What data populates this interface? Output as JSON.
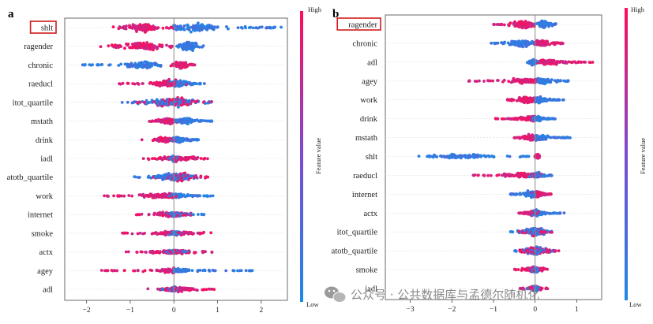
{
  "chart_data": [
    {
      "type": "scatter",
      "subtype": "shap-beeswarm",
      "panel_label": "a",
      "xlim": [
        -2.5,
        2.6
      ],
      "xticks": [
        -2,
        -1,
        0,
        1,
        2
      ],
      "highlighted_feature": "shlt",
      "colorbar": {
        "high_label": "High",
        "low_label": "Low",
        "title": "Feature value",
        "low_color": "#1e88e5",
        "high_color": "#ff0d57"
      },
      "features": [
        {
          "name": "shlt",
          "low_span": [
            0.0,
            2.5
          ],
          "high_span": [
            -1.4,
            0.0
          ],
          "low_peak": 0.45,
          "high_peak": -0.75,
          "thickness": 8
        },
        {
          "name": "ragender",
          "low_span": [
            0.05,
            0.8
          ],
          "high_span": [
            -1.7,
            0.0
          ],
          "low_peak": 0.35,
          "high_peak": -0.7,
          "thickness": 8
        },
        {
          "name": "chronic",
          "low_span": [
            -2.2,
            -0.3
          ],
          "high_span": [
            -0.1,
            0.5
          ],
          "low_peak": -0.7,
          "high_peak": 0.15,
          "thickness": 7
        },
        {
          "name": "raeducl",
          "low_span": [
            -0.2,
            0.7
          ],
          "high_span": [
            -1.3,
            0.3
          ],
          "low_peak": 0.1,
          "high_peak": -0.1,
          "thickness": 7
        },
        {
          "name": "itot_quartile",
          "low_span": [
            -1.2,
            0.9
          ],
          "high_span": [
            -1.0,
            0.9
          ],
          "low_peak": 0.0,
          "high_peak": 0.0,
          "thickness": 8
        },
        {
          "name": "mstath",
          "low_span": [
            0.0,
            0.9
          ],
          "high_span": [
            -0.6,
            0.1
          ],
          "low_peak": 0.25,
          "high_peak": -0.15,
          "thickness": 6
        },
        {
          "name": "drink",
          "low_span": [
            -0.1,
            0.6
          ],
          "high_span": [
            -0.8,
            0.05
          ],
          "low_peak": 0.1,
          "high_peak": -0.2,
          "thickness": 5
        },
        {
          "name": "iadl",
          "low_span": [
            -0.2,
            0.1
          ],
          "high_span": [
            -0.7,
            0.9
          ],
          "low_peak": 0.0,
          "high_peak": 0.1,
          "thickness": 5
        },
        {
          "name": "atotb_quartile",
          "low_span": [
            -1.0,
            0.6
          ],
          "high_span": [
            -0.5,
            0.8
          ],
          "low_peak": 0.0,
          "high_peak": 0.1,
          "thickness": 8
        },
        {
          "name": "work",
          "low_span": [
            -0.1,
            0.9
          ],
          "high_span": [
            -1.6,
            0.05
          ],
          "low_peak": 0.05,
          "high_peak": -0.3,
          "thickness": 5
        },
        {
          "name": "internet",
          "low_span": [
            -0.2,
            0.7
          ],
          "high_span": [
            -1.0,
            0.4
          ],
          "low_peak": 0.0,
          "high_peak": -0.05,
          "thickness": 5
        },
        {
          "name": "smoke",
          "low_span": [
            -0.3,
            0.2
          ],
          "high_span": [
            -1.3,
            0.9
          ],
          "low_peak": 0.0,
          "high_peak": 0.0,
          "thickness": 4
        },
        {
          "name": "actx",
          "low_span": [
            -0.2,
            0.4
          ],
          "high_span": [
            -1.1,
            0.9
          ],
          "low_peak": 0.0,
          "high_peak": 0.0,
          "thickness": 4
        },
        {
          "name": "agey",
          "low_span": [
            0.0,
            1.9
          ],
          "high_span": [
            -1.7,
            0.0
          ],
          "low_peak": 0.0,
          "high_peak": 0.0,
          "thickness": 4
        },
        {
          "name": "adl",
          "low_span": [
            -0.3,
            0.1
          ],
          "high_span": [
            -0.6,
            1.0
          ],
          "low_peak": 0.0,
          "high_peak": 0.05,
          "thickness": 4
        }
      ]
    },
    {
      "type": "scatter",
      "subtype": "shap-beeswarm",
      "panel_label": "b",
      "xlim": [
        -3.6,
        1.6
      ],
      "xticks": [
        -3,
        -2,
        -1,
        0,
        1
      ],
      "highlighted_feature": "ragender",
      "colorbar": {
        "high_label": "High",
        "low_label": "Low",
        "title": "Feature value",
        "low_color": "#1e88e5",
        "high_color": "#ff0d57"
      },
      "features": [
        {
          "name": "ragender",
          "low_span": [
            0.0,
            0.5
          ],
          "high_span": [
            -1.0,
            0.0
          ],
          "low_peak": 0.2,
          "high_peak": -0.3,
          "thickness": 8
        },
        {
          "name": "chronic",
          "low_span": [
            -1.1,
            0.0
          ],
          "high_span": [
            -0.1,
            0.7
          ],
          "low_peak": -0.3,
          "high_peak": 0.15,
          "thickness": 7
        },
        {
          "name": "adl",
          "low_span": [
            -0.2,
            0.1
          ],
          "high_span": [
            0.0,
            1.4
          ],
          "low_peak": -0.05,
          "high_peak": 0.3,
          "thickness": 5
        },
        {
          "name": "agey",
          "low_span": [
            0.0,
            0.8
          ],
          "high_span": [
            -1.6,
            0.0
          ],
          "low_peak": 0.2,
          "high_peak": -0.2,
          "thickness": 6
        },
        {
          "name": "work",
          "low_span": [
            0.0,
            0.7
          ],
          "high_span": [
            -0.7,
            0.1
          ],
          "low_peak": 0.1,
          "high_peak": -0.2,
          "thickness": 6
        },
        {
          "name": "drink",
          "low_span": [
            -0.1,
            0.5
          ],
          "high_span": [
            -1.0,
            0.0
          ],
          "low_peak": 0.05,
          "high_peak": -0.1,
          "thickness": 5
        },
        {
          "name": "mstath",
          "low_span": [
            0.0,
            0.9
          ],
          "high_span": [
            -0.5,
            0.1
          ],
          "low_peak": 0.1,
          "high_peak": -0.1,
          "thickness": 6
        },
        {
          "name": "shlt",
          "low_span": [
            -3.1,
            -0.1
          ],
          "high_span": [
            0.0,
            0.1
          ],
          "low_peak": -1.8,
          "high_peak": 0.05,
          "thickness": 4
        },
        {
          "name": "raeducl",
          "low_span": [
            -0.2,
            0.4
          ],
          "high_span": [
            -1.5,
            0.2
          ],
          "low_peak": 0.05,
          "high_peak": -0.2,
          "thickness": 5
        },
        {
          "name": "internet",
          "low_span": [
            -0.6,
            0.0
          ],
          "high_span": [
            -0.1,
            0.4
          ],
          "low_peak": -0.1,
          "high_peak": 0.05,
          "thickness": 6
        },
        {
          "name": "actx",
          "low_span": [
            -0.1,
            0.7
          ],
          "high_span": [
            -0.4,
            0.1
          ],
          "low_peak": 0.05,
          "high_peak": -0.05,
          "thickness": 5
        },
        {
          "name": "itot_quartile",
          "low_span": [
            -0.6,
            0.4
          ],
          "high_span": [
            -0.4,
            0.5
          ],
          "low_peak": 0.0,
          "high_peak": 0.0,
          "thickness": 8
        },
        {
          "name": "atotb_quartile",
          "low_span": [
            -0.5,
            0.5
          ],
          "high_span": [
            -0.4,
            0.6
          ],
          "low_peak": 0.0,
          "high_peak": 0.0,
          "thickness": 7
        },
        {
          "name": "smoke",
          "low_span": [
            -0.2,
            0.1
          ],
          "high_span": [
            -0.5,
            0.3
          ],
          "low_peak": 0.0,
          "high_peak": 0.0,
          "thickness": 6
        },
        {
          "name": "iadl",
          "low_span": [
            -0.2,
            0.1
          ],
          "high_span": [
            -0.4,
            0.3
          ],
          "low_peak": 0.0,
          "high_peak": 0.0,
          "thickness": 5
        }
      ]
    }
  ],
  "watermark": {
    "icon": "wechat-icon",
    "text": "公众号 · 公共数据库与孟德尔随机化"
  }
}
